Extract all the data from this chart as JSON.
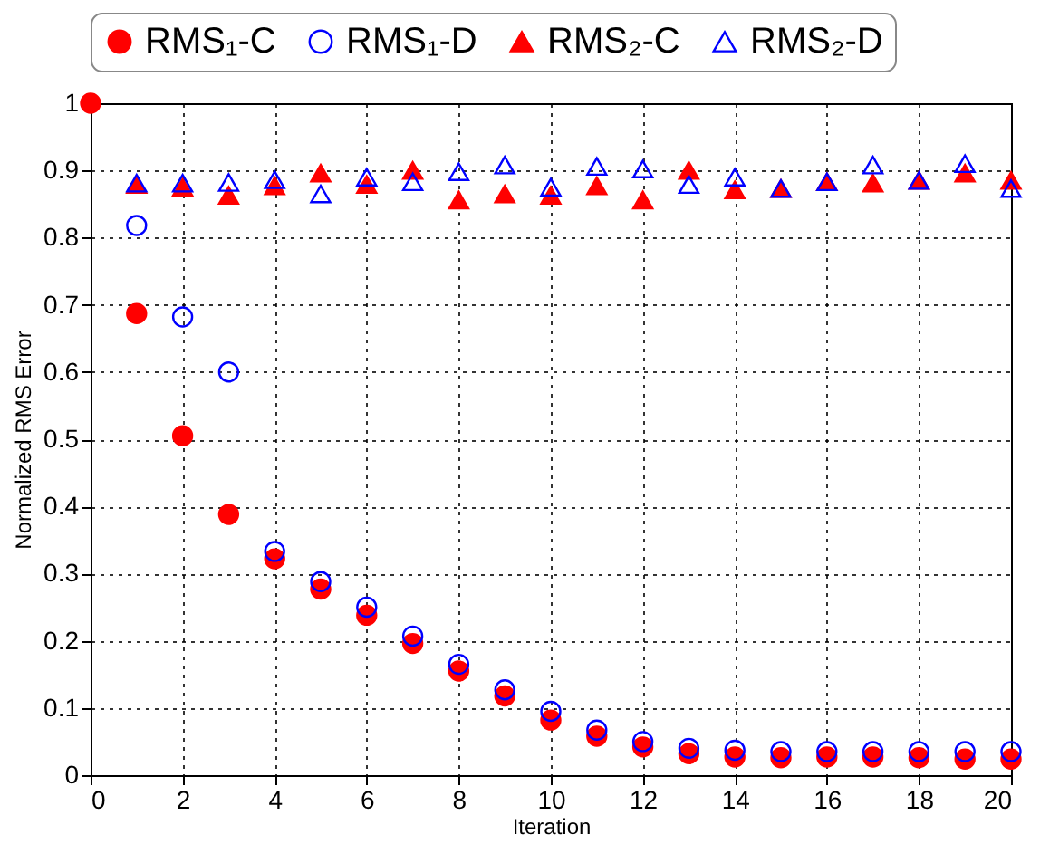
{
  "chart_data": {
    "type": "scatter",
    "xlabel": "Iteration",
    "ylabel": "Normalized RMS Error",
    "xlim": [
      0,
      20
    ],
    "ylim": [
      0,
      1
    ],
    "xticks": [
      0,
      2,
      4,
      6,
      8,
      10,
      12,
      14,
      16,
      18,
      20
    ],
    "yticks": [
      0,
      0.1,
      0.2,
      0.3,
      0.4,
      0.5,
      0.6,
      0.7,
      0.8,
      0.9,
      1
    ],
    "grid": true,
    "legend": "top",
    "marker": "circle",
    "series": [
      {
        "name": "RMS₁-C",
        "color": "#ff0000",
        "marker": "circle",
        "x": [
          0,
          1,
          2,
          3,
          4,
          5,
          6,
          7,
          8,
          9,
          10,
          11,
          12,
          13,
          14,
          15,
          16,
          17,
          18,
          19,
          20
        ],
        "values": [
          1,
          0.687,
          0.505,
          0.388,
          0.322,
          0.277,
          0.238,
          0.196,
          0.155,
          0.118,
          0.082,
          0.058,
          0.042,
          0.032,
          0.027,
          0.026,
          0.027,
          0.027,
          0.026,
          0.024,
          0.024
        ]
      },
      {
        "name": "RMS₁-D",
        "color": "#0000ff",
        "marker": "circle",
        "x": [
          1,
          2,
          3,
          4,
          5,
          6,
          7,
          8,
          9,
          10,
          11,
          12,
          13,
          14,
          15,
          16,
          17,
          18,
          19,
          20
        ],
        "values": [
          0.818,
          0.682,
          0.6,
          0.333,
          0.288,
          0.25,
          0.207,
          0.165,
          0.127,
          0.095,
          0.067,
          0.05,
          0.04,
          0.037,
          0.035,
          0.035,
          0.035,
          0.035,
          0.035,
          0.035
        ]
      },
      {
        "name": "RMS₂-C",
        "color": "#ff0000",
        "marker": "triangle",
        "x": [
          1,
          2,
          3,
          4,
          5,
          6,
          7,
          8,
          9,
          10,
          11,
          12,
          13,
          14,
          15,
          16,
          17,
          18,
          19,
          20
        ],
        "values": [
          0.879,
          0.875,
          0.863,
          0.877,
          0.896,
          0.879,
          0.9,
          0.856,
          0.865,
          0.863,
          0.877,
          0.856,
          0.9,
          0.871,
          0.873,
          0.883,
          0.881,
          0.885,
          0.896,
          0.885
        ]
      },
      {
        "name": "RMS₂-D",
        "color": "#0000ff",
        "marker": "triangle",
        "x": [
          1,
          2,
          3,
          4,
          5,
          6,
          7,
          8,
          9,
          10,
          11,
          12,
          13,
          14,
          15,
          16,
          17,
          18,
          19,
          20
        ],
        "values": [
          0.881,
          0.881,
          0.882,
          0.886,
          0.865,
          0.89,
          0.883,
          0.898,
          0.908,
          0.875,
          0.906,
          0.902,
          0.879,
          0.89,
          0.873,
          0.883,
          0.908,
          0.885,
          0.91,
          0.873
        ]
      }
    ]
  }
}
